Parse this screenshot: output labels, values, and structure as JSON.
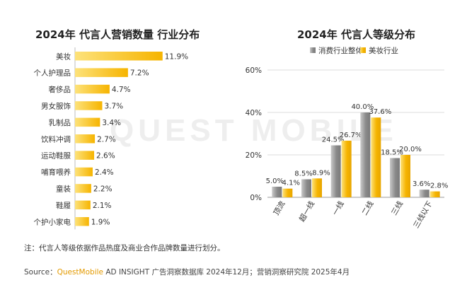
{
  "colors": {
    "gold": "#f6b400",
    "gold_light": "#fde27a",
    "gray": "#8a8a8a",
    "gray_light": "#c9c9c9",
    "brand": "#e39a00"
  },
  "watermark": "QUEST MOBILE",
  "left_title": "2024年 代言人营销数量 行业分布",
  "right_title": "2024年 代言人等级分布",
  "note": "注：代言人等级依据作品热度及商业合作品牌数量进行划分。",
  "source": {
    "prefix": "Source：",
    "brand": "QuestMobile",
    "rest": " AD INSIGHT 广告洞察数据库 2024年12月；营销洞察研究院 2025年4月"
  },
  "chart_data": [
    {
      "type": "bar",
      "orientation": "horizontal",
      "title": "2024年 代言人营销数量 行业分布",
      "categories": [
        "美妆",
        "个人护理品",
        "奢侈品",
        "男女服饰",
        "乳制品",
        "饮料冲调",
        "运动鞋服",
        "哺育喂养",
        "童装",
        "鞋履",
        "个护小家电"
      ],
      "values": [
        11.9,
        7.2,
        4.7,
        3.7,
        3.4,
        2.7,
        2.6,
        2.4,
        2.2,
        2.1,
        1.9
      ],
      "value_labels": [
        "11.9%",
        "7.2%",
        "4.7%",
        "3.7%",
        "3.4%",
        "2.7%",
        "2.6%",
        "2.4%",
        "2.2%",
        "2.1%",
        "1.9%"
      ],
      "unit": "%",
      "grid": false
    },
    {
      "type": "bar",
      "title": "2024年 代言人等级分布",
      "categories": [
        "顶流",
        "超一线",
        "一线",
        "二线",
        "三线",
        "三线以下"
      ],
      "series": [
        {
          "name": "消费行业整体",
          "values": [
            5.0,
            8.5,
            24.5,
            40.0,
            18.5,
            3.6
          ],
          "labels": [
            "5.0%",
            "8.5%",
            "24.5%",
            "40.0%",
            "18.5%",
            "3.6%"
          ]
        },
        {
          "name": "美妆行业",
          "values": [
            4.1,
            8.9,
            26.7,
            37.6,
            20.0,
            2.8
          ],
          "labels": [
            "4.1%",
            "8.9%",
            "26.7%",
            "37.6%",
            "20.0%",
            "2.8%"
          ]
        }
      ],
      "ylim": [
        0,
        60
      ],
      "yticks": [
        "0%",
        "20%",
        "40%",
        "60%"
      ],
      "legend_position": "top",
      "grid": true
    }
  ]
}
